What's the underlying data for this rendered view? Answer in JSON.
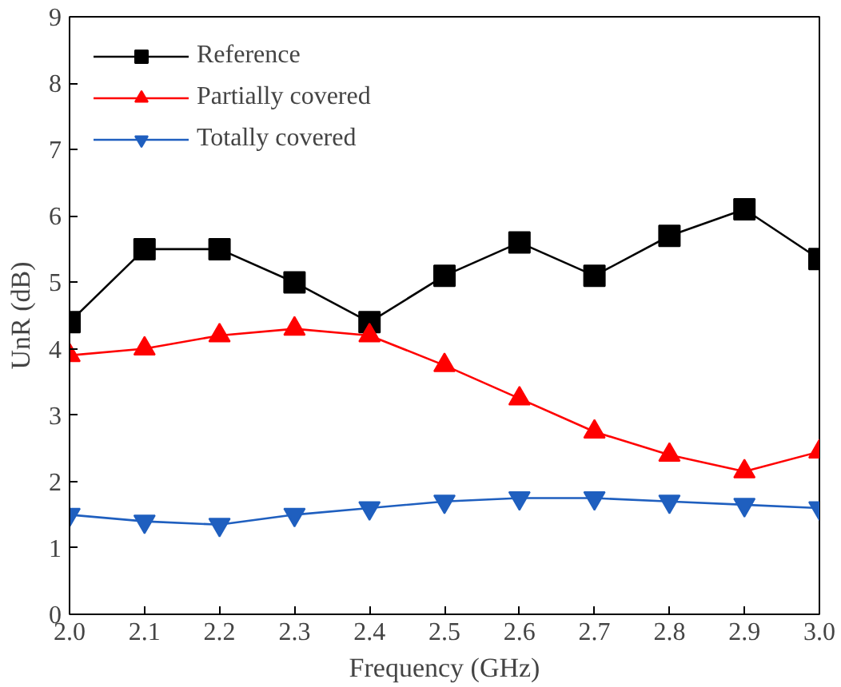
{
  "chart_data": {
    "type": "line",
    "xlabel": "Frequency (GHz)",
    "ylabel": "UnR (dB)",
    "x": [
      2.0,
      2.1,
      2.2,
      2.3,
      2.4,
      2.5,
      2.6,
      2.7,
      2.8,
      2.9,
      3.0
    ],
    "series": [
      {
        "name": "Reference",
        "color": "#000000",
        "marker": "square",
        "values": [
          4.4,
          5.5,
          5.5,
          5.0,
          4.4,
          5.1,
          5.6,
          5.1,
          5.7,
          6.1,
          5.35
        ]
      },
      {
        "name": "Partially covered",
        "color": "#ff0000",
        "marker": "triangle",
        "values": [
          3.9,
          4.0,
          4.2,
          4.3,
          4.2,
          3.75,
          3.25,
          2.75,
          2.4,
          2.15,
          2.45
        ]
      },
      {
        "name": "Totally covered",
        "color": "#1f5fbf",
        "marker": "triangle_down",
        "values": [
          1.5,
          1.4,
          1.35,
          1.5,
          1.6,
          1.7,
          1.75,
          1.75,
          1.7,
          1.65,
          1.6
        ]
      }
    ],
    "xlim": [
      2.0,
      3.0
    ],
    "xticks": [
      {
        "value": 2.0,
        "label": "2.0"
      },
      {
        "value": 2.1,
        "label": "2.1"
      },
      {
        "value": 2.2,
        "label": "2.2"
      },
      {
        "value": 2.3,
        "label": "2.3"
      },
      {
        "value": 2.4,
        "label": "2.4"
      },
      {
        "value": 2.5,
        "label": "2.5"
      },
      {
        "value": 2.6,
        "label": "2.6"
      },
      {
        "value": 2.7,
        "label": "2.7"
      },
      {
        "value": 2.8,
        "label": "2.8"
      },
      {
        "value": 2.9,
        "label": "2.9"
      },
      {
        "value": 3.0,
        "label": "3.0"
      }
    ],
    "ylim": [
      0,
      9
    ],
    "yticks": [
      0,
      1,
      2,
      3,
      4,
      5,
      6,
      7,
      8,
      9
    ],
    "grid": false,
    "legend": "top left",
    "line_style": "solid"
  }
}
